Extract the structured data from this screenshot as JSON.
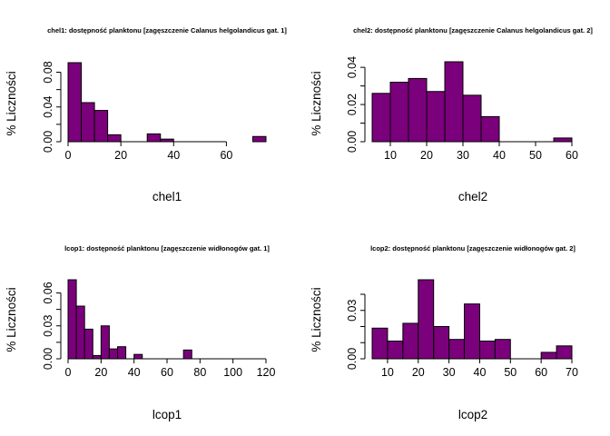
{
  "colors": {
    "bar_fill": "#7b007b",
    "bar_stroke": "#000000",
    "axis": "#000000"
  },
  "chart_data": [
    {
      "type": "bar",
      "title": "chel1: dostępność planktonu [zagęszczenie Calanus helgolandicus gat. 1]",
      "xlabel": "chel1",
      "ylabel": "% Liczności",
      "bin_edges": [
        0,
        5,
        10,
        15,
        20,
        25,
        30,
        35,
        40,
        45,
        50,
        55,
        60,
        65,
        70,
        75
      ],
      "values": [
        0.091,
        0.045,
        0.036,
        0.008,
        0,
        0,
        0.009,
        0.003,
        0,
        0,
        0,
        0,
        0,
        0,
        0.006
      ],
      "xlim": [
        0,
        75
      ],
      "ylim": [
        0,
        0.091
      ],
      "xticks": [
        0,
        20,
        40,
        60
      ],
      "xtick_labels": [
        "0",
        "20",
        "40",
        "60"
      ],
      "yticks": [
        0,
        0.02,
        0.04,
        0.06,
        0.08
      ],
      "ytick_labels": [
        "0.00",
        "",
        "0.04",
        "",
        "0.08"
      ]
    },
    {
      "type": "bar",
      "title": "chel2: dostępność planktonu [zagęszczenie Calanus helgolandicus gat. 2]",
      "xlabel": "chel2",
      "ylabel": "% Liczności",
      "bin_edges": [
        5,
        10,
        15,
        20,
        25,
        30,
        35,
        40,
        45,
        50,
        55,
        60
      ],
      "values": [
        0.026,
        0.032,
        0.034,
        0.027,
        0.043,
        0.025,
        0.0135,
        0,
        0,
        0,
        0.002
      ],
      "xlim": [
        5,
        60
      ],
      "ylim": [
        0,
        0.043
      ],
      "xticks": [
        10,
        20,
        30,
        40,
        50,
        60
      ],
      "xtick_labels": [
        "10",
        "20",
        "30",
        "40",
        "50",
        "60"
      ],
      "yticks": [
        0,
        0.01,
        0.02,
        0.03,
        0.04
      ],
      "ytick_labels": [
        "0.00",
        "",
        "0.02",
        "",
        "0.04"
      ]
    },
    {
      "type": "bar",
      "title": "lcop1: dostępność planktonu [zagęszczenie widłonogów gat. 1]",
      "xlabel": "lcop1",
      "ylabel": "% Liczności",
      "bin_edges": [
        0,
        5,
        10,
        15,
        20,
        25,
        30,
        35,
        40,
        45,
        50,
        55,
        60,
        65,
        70,
        75
      ],
      "values": [
        0.072,
        0.048,
        0.027,
        0.003,
        0.03,
        0.009,
        0.011,
        0,
        0.004,
        0,
        0,
        0,
        0,
        0,
        0.008
      ],
      "xlim": [
        0,
        120
      ],
      "ylim": [
        0,
        0.072
      ],
      "xticks": [
        0,
        20,
        40,
        60,
        80,
        100,
        120
      ],
      "xtick_labels": [
        "0",
        "20",
        "40",
        "60",
        "80",
        "100",
        "120"
      ],
      "yticks": [
        0,
        0.015,
        0.03,
        0.045,
        0.06
      ],
      "ytick_labels": [
        "0.00",
        "",
        "0.03",
        "",
        "0.06"
      ]
    },
    {
      "type": "bar",
      "title": "lcop2: dostępność planktonu [zagęszczenie widłonogów gat. 2]",
      "xlabel": "lcop2",
      "ylabel": "% Liczności",
      "bin_edges": [
        5,
        10,
        15,
        20,
        25,
        30,
        35,
        40,
        45,
        50,
        55,
        60,
        65,
        70
      ],
      "values": [
        0.019,
        0.011,
        0.022,
        0.049,
        0.02,
        0.012,
        0.034,
        0.011,
        0.012,
        0,
        0,
        0.004,
        0.008
      ],
      "xlim": [
        5,
        70
      ],
      "ylim": [
        0,
        0.049
      ],
      "xticks": [
        10,
        20,
        30,
        40,
        50,
        60,
        70
      ],
      "xtick_labels": [
        "10",
        "20",
        "30",
        "40",
        "50",
        "60",
        "70"
      ],
      "yticks": [
        0,
        0.01,
        0.02,
        0.03,
        0.04
      ],
      "ytick_labels": [
        "0.00",
        "",
        "",
        "0.03",
        ""
      ]
    }
  ]
}
